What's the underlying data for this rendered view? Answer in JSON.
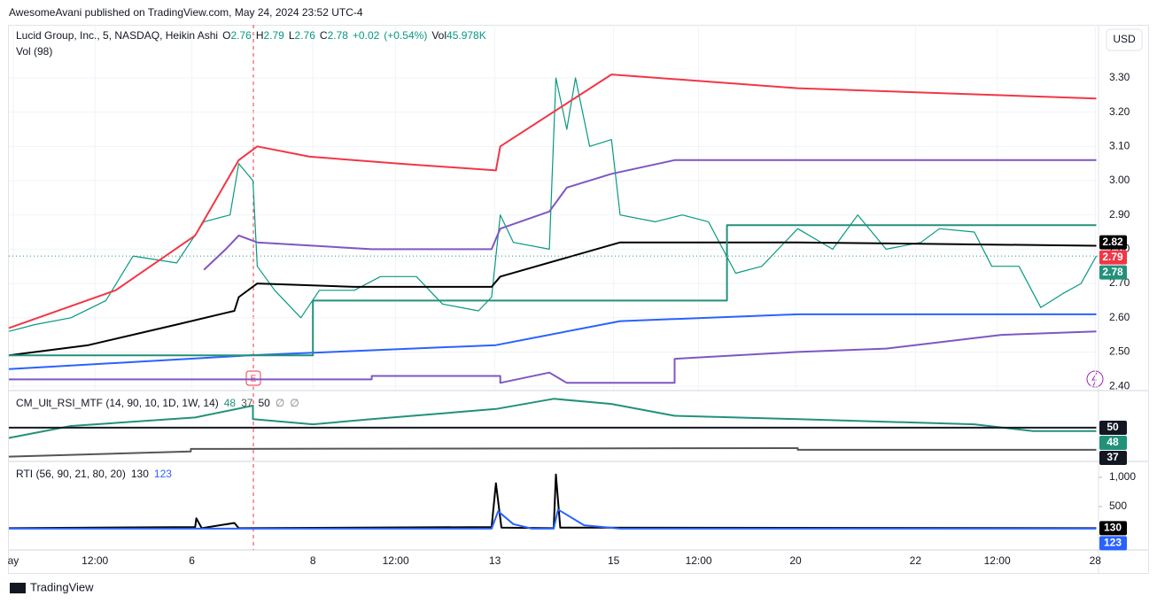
{
  "header": {
    "published": "AwesomeAvani published on TradingView.com, May 24, 2024 23:52 UTC-4"
  },
  "currency": "USD",
  "footer": "TradingView",
  "chart_data": [
    {
      "type": "line",
      "title": "Lucid Group, Inc., 5, NASDAQ, Heikin Ashi",
      "subtitle": "Vol (98)",
      "legend": [
        {
          "label": "O",
          "value": 2.76
        },
        {
          "label": "H",
          "value": 2.79
        },
        {
          "label": "L",
          "value": 2.76
        },
        {
          "label": "C",
          "value": 2.78
        },
        {
          "value": "+0.02"
        },
        {
          "value": "(+0.54%)"
        },
        {
          "label": "Vol",
          "value": "45.978K"
        }
      ],
      "legend_color": "#089981",
      "grid": true,
      "xlim": [
        0,
        100
      ],
      "ylim": [
        2.39,
        3.455
      ],
      "xticks": [
        {
          "value": 0.4,
          "label": "ay"
        },
        {
          "value": 7.9,
          "label": "12:00"
        },
        {
          "value": 16.8,
          "label": "6"
        },
        {
          "value": 27.9,
          "label": "8"
        },
        {
          "value": 35.5,
          "label": "12:00"
        },
        {
          "value": 44.6,
          "label": "13"
        },
        {
          "value": 55.5,
          "label": "15"
        },
        {
          "value": 63.3,
          "label": "12:00"
        },
        {
          "value": 72.2,
          "label": "20"
        },
        {
          "value": 83.2,
          "label": "22"
        },
        {
          "value": 90.7,
          "label": "12:00"
        },
        {
          "value": 99.7,
          "label": "28"
        }
      ],
      "yticks": [
        {
          "value": 2.4,
          "label": "2.40"
        },
        {
          "value": 2.5,
          "label": "2.50"
        },
        {
          "value": 2.6,
          "label": "2.60"
        },
        {
          "value": 2.7,
          "label": "2.70"
        },
        {
          "value": 2.8,
          "label": "2.80"
        },
        {
          "value": 2.9,
          "label": "2.90"
        },
        {
          "value": 3.0,
          "label": "3.00"
        },
        {
          "value": 3.1,
          "label": "3.10"
        },
        {
          "value": 3.2,
          "label": "3.20"
        },
        {
          "value": 3.3,
          "label": "3.30"
        }
      ],
      "series": [
        {
          "color": "#089981",
          "x": [
            0,
            2.4,
            5.7,
            8.9,
            11.4,
            15.4,
            17.9,
            20.3,
            21.1,
            22.4,
            22.8,
            24.4,
            26.8,
            28.5,
            31.7,
            34.1,
            37.4,
            39.8,
            43.1,
            44.3,
            45.1,
            46.3,
            49.6,
            50.2,
            51.2,
            52.0,
            53.3,
            55.3,
            56.1,
            59.3,
            61.8,
            64.2,
            66.7,
            69.1,
            72.4,
            75.6,
            77.9,
            80.5,
            83.7,
            85.4,
            88.6,
            90.2,
            92.7,
            94.7,
            96.7,
            98.4,
            99.8
          ],
          "values": [
            2.56,
            2.58,
            2.6,
            2.65,
            2.78,
            2.76,
            2.88,
            2.9,
            3.05,
            3.0,
            2.75,
            2.68,
            2.6,
            2.68,
            2.68,
            2.72,
            2.72,
            2.64,
            2.62,
            2.66,
            2.9,
            2.82,
            2.8,
            3.3,
            3.15,
            3.3,
            3.1,
            3.12,
            2.9,
            2.88,
            2.9,
            2.88,
            2.73,
            2.75,
            2.86,
            2.8,
            2.9,
            2.8,
            2.82,
            2.86,
            2.85,
            2.75,
            2.75,
            2.63,
            2.67,
            2.7,
            2.78
          ]
        },
        {
          "color": "#f23645",
          "x": [
            0,
            9.8,
            17.1,
            21.1,
            22.8,
            27.6,
            35.8,
            44.7,
            45.1,
            55.3,
            72.4,
            99.8
          ],
          "values": [
            2.57,
            2.68,
            2.84,
            3.06,
            3.1,
            3.07,
            3.05,
            3.03,
            3.1,
            3.31,
            3.27,
            3.24
          ]
        },
        {
          "color": "#000000",
          "x": [
            0,
            7.3,
            15.4,
            20.7,
            21.1,
            22.8,
            31.7,
            44.3,
            45.1,
            56.1,
            72.4,
            99.8
          ],
          "values": [
            2.49,
            2.52,
            2.58,
            2.62,
            2.66,
            2.7,
            2.69,
            2.69,
            2.72,
            2.82,
            2.82,
            2.81
          ]
        },
        {
          "color": "#2962ff",
          "x": [
            0,
            22.0,
            44.7,
            56.1,
            72.4,
            99.8
          ],
          "values": [
            2.45,
            2.49,
            2.52,
            2.59,
            2.61,
            2.61
          ]
        },
        {
          "color": "#7e57c2",
          "x": [
            0,
            33.3,
            33.3,
            45.1,
            45.1,
            49.6,
            51.2,
            61.1,
            61.1,
            66.7,
            72.4,
            80.5,
            91.1,
            99.8
          ],
          "values": [
            2.42,
            2.42,
            2.43,
            2.43,
            2.41,
            2.44,
            2.41,
            2.41,
            2.48,
            2.49,
            2.5,
            2.51,
            2.55,
            2.56
          ]
        },
        {
          "color": "#7e57c2",
          "x": [
            17.9,
            19.9,
            21.1,
            22.8,
            33.3,
            44.3,
            45.1,
            49.6,
            51.2,
            55.3,
            61.1,
            99.8
          ],
          "values": [
            2.74,
            2.8,
            2.84,
            2.82,
            2.8,
            2.8,
            2.86,
            2.91,
            2.98,
            3.02,
            3.06,
            3.06
          ]
        },
        {
          "color": "#22917a",
          "x": [
            0,
            27.9,
            27.9,
            65.9,
            65.9,
            99.8
          ],
          "values": [
            2.49,
            2.49,
            2.65,
            2.65,
            2.87,
            2.87
          ]
        }
      ],
      "axis_labels": [
        {
          "value": 2.82,
          "color": "#000000"
        },
        {
          "value": 2.79,
          "color": "#f23645"
        },
        {
          "value": 2.78,
          "color": "#22917a"
        }
      ]
    },
    {
      "type": "line",
      "title": "CM_Ult_RSI_MTF (14, 90, 10, 1D, 1W, 14)",
      "legend_values": [
        {
          "value": 48,
          "color": "#22917a"
        },
        {
          "value": 37,
          "color": "#555555"
        },
        {
          "value": 50,
          "color": "#131722"
        },
        {
          "value": "∅",
          "color": "#787b86"
        },
        {
          "value": "∅",
          "color": "#787b86"
        }
      ],
      "xlim": [
        0,
        100
      ],
      "ylim": [
        30.7,
        70.8
      ],
      "series": [
        {
          "color": "#22917a",
          "x": [
            0,
            5.7,
            17.1,
            22.4,
            22.4,
            27.9,
            33.3,
            44.7,
            50.0,
            55.3,
            61.1,
            72.4,
            88.6,
            94.0,
            99.8
          ],
          "values": [
            44,
            51,
            56,
            63,
            55,
            52,
            55,
            61,
            67,
            64,
            57,
            55,
            52,
            48,
            48
          ]
        },
        {
          "color": "#555555",
          "x": [
            0,
            16.7,
            16.7,
            72.4,
            72.4,
            99.8
          ],
          "values": [
            33,
            36,
            37.5,
            38,
            37,
            37
          ]
        },
        {
          "color": "#131722",
          "x": [
            0,
            99.8
          ],
          "values": [
            50,
            50
          ]
        }
      ],
      "axis_labels": [
        {
          "value": 50,
          "color": "#131722"
        },
        {
          "value": 48,
          "color": "#22917a"
        },
        {
          "value": 37,
          "color": "#131722"
        }
      ]
    },
    {
      "type": "line",
      "title": "RTI (56, 90, 21, 80, 20)",
      "legend_values": [
        {
          "value": 130,
          "color": "#131722"
        },
        {
          "value": 123,
          "color": "#2962ff"
        }
      ],
      "xlim": [
        0,
        100
      ],
      "ylim": [
        -227,
        1242
      ],
      "yticks": [
        500,
        {
          "value": 1000,
          "label": "1,000"
        }
      ],
      "series": [
        {
          "color": "#000000",
          "x": [
            0,
            17.1,
            17.2,
            17.7,
            20.7,
            21.1,
            44.3,
            44.7,
            45.2,
            50.0,
            50.2,
            50.6,
            99.8
          ],
          "values": [
            130,
            150,
            300,
            130,
            220,
            130,
            150,
            900,
            140,
            130,
            1050,
            140,
            130
          ]
        },
        {
          "color": "#2962ff",
          "x": [
            0,
            44.3,
            44.9,
            46.3,
            48.0,
            50.0,
            50.4,
            52.8,
            56.1,
            99.8
          ],
          "values": [
            123,
            123,
            420,
            200,
            123,
            123,
            450,
            180,
            123,
            123
          ]
        }
      ],
      "axis_labels": [
        {
          "value": 130,
          "color": "#000000"
        },
        {
          "value": 123,
          "color": "#2962ff"
        }
      ]
    }
  ]
}
